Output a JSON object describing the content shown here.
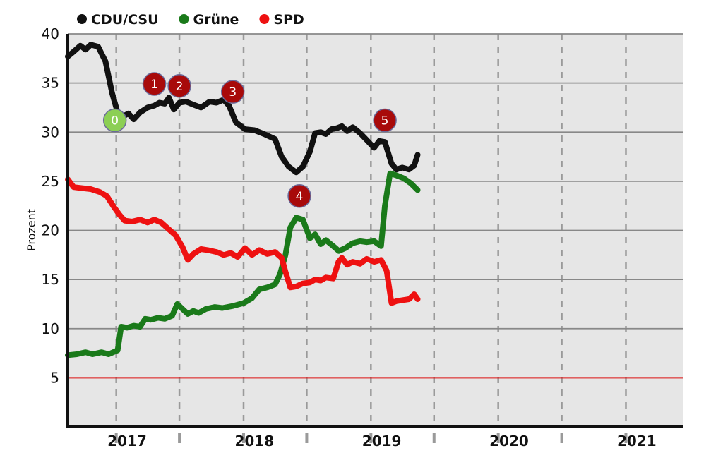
{
  "chart_data": {
    "type": "line",
    "ylabel": "Prozent",
    "ylim": [
      0,
      40
    ],
    "xlim": [
      "2016-08-15",
      "2021-06-15"
    ],
    "y_ticks": [
      5,
      10,
      15,
      20,
      25,
      30,
      35,
      40
    ],
    "x_tick_labels": [
      {
        "label": "2017",
        "date": "2017-02-01"
      },
      {
        "label": "2018",
        "date": "2018-02-01"
      },
      {
        "label": "2019",
        "date": "2019-02-01"
      },
      {
        "label": "2020",
        "date": "2020-02-01"
      },
      {
        "label": "2021",
        "date": "2021-02-01"
      }
    ],
    "grid": true,
    "legend_position": "top-left",
    "threshold": {
      "value": 5,
      "color": "#dd1111"
    },
    "series": [
      {
        "name": "CDU/CSU",
        "color": "#111111",
        "points": [
          [
            "2016-08-15",
            37.7
          ],
          [
            "2016-09-01",
            38.2
          ],
          [
            "2016-09-20",
            38.8
          ],
          [
            "2016-10-05",
            38.4
          ],
          [
            "2016-10-20",
            38.9
          ],
          [
            "2016-11-10",
            38.7
          ],
          [
            "2016-12-01",
            37.2
          ],
          [
            "2016-12-20",
            34.0
          ],
          [
            "2017-01-05",
            32.0
          ],
          [
            "2017-01-20",
            31.6
          ],
          [
            "2017-02-05",
            31.9
          ],
          [
            "2017-02-20",
            31.3
          ],
          [
            "2017-03-10",
            32.0
          ],
          [
            "2017-04-01",
            32.5
          ],
          [
            "2017-04-20",
            32.7
          ],
          [
            "2017-05-05",
            33.0
          ],
          [
            "2017-05-20",
            32.9
          ],
          [
            "2017-06-01",
            33.5
          ],
          [
            "2017-06-15",
            32.3
          ],
          [
            "2017-07-01",
            33.0
          ],
          [
            "2017-07-20",
            33.1
          ],
          [
            "2017-08-10",
            32.8
          ],
          [
            "2017-09-01",
            32.5
          ],
          [
            "2017-09-25",
            33.1
          ],
          [
            "2017-10-15",
            33.0
          ],
          [
            "2017-11-05",
            33.3
          ],
          [
            "2017-11-20",
            32.7
          ],
          [
            "2017-12-10",
            31.0
          ],
          [
            "2018-01-05",
            30.3
          ],
          [
            "2018-02-01",
            30.2
          ],
          [
            "2018-03-01",
            29.8
          ],
          [
            "2018-04-01",
            29.3
          ],
          [
            "2018-04-20",
            27.5
          ],
          [
            "2018-05-10",
            26.5
          ],
          [
            "2018-06-01",
            25.9
          ],
          [
            "2018-06-20",
            26.5
          ],
          [
            "2018-07-10",
            28.0
          ],
          [
            "2018-07-25",
            29.9
          ],
          [
            "2018-08-10",
            30.0
          ],
          [
            "2018-08-25",
            29.8
          ],
          [
            "2018-09-10",
            30.3
          ],
          [
            "2018-09-25",
            30.4
          ],
          [
            "2018-10-10",
            30.6
          ],
          [
            "2018-10-25",
            30.1
          ],
          [
            "2018-11-10",
            30.5
          ],
          [
            "2018-12-01",
            29.9
          ],
          [
            "2018-12-20",
            29.2
          ],
          [
            "2019-01-10",
            28.4
          ],
          [
            "2019-01-25",
            29.1
          ],
          [
            "2019-02-10",
            29.0
          ],
          [
            "2019-03-01",
            26.8
          ],
          [
            "2019-03-15",
            26.2
          ],
          [
            "2019-04-01",
            26.4
          ],
          [
            "2019-04-20",
            26.2
          ],
          [
            "2019-05-05",
            26.6
          ],
          [
            "2019-05-15",
            27.7
          ]
        ]
      },
      {
        "name": "Grüne",
        "color": "#1a7a1a",
        "points": [
          [
            "2016-08-15",
            7.3
          ],
          [
            "2016-09-10",
            7.4
          ],
          [
            "2016-10-05",
            7.6
          ],
          [
            "2016-10-25",
            7.4
          ],
          [
            "2016-11-20",
            7.6
          ],
          [
            "2016-12-10",
            7.4
          ],
          [
            "2017-01-05",
            7.8
          ],
          [
            "2017-01-15",
            10.2
          ],
          [
            "2017-02-01",
            10.1
          ],
          [
            "2017-02-20",
            10.3
          ],
          [
            "2017-03-10",
            10.2
          ],
          [
            "2017-03-25",
            11.0
          ],
          [
            "2017-04-10",
            10.9
          ],
          [
            "2017-05-01",
            11.1
          ],
          [
            "2017-05-20",
            11.0
          ],
          [
            "2017-06-10",
            11.3
          ],
          [
            "2017-06-25",
            12.5
          ],
          [
            "2017-07-10",
            12.0
          ],
          [
            "2017-07-25",
            11.5
          ],
          [
            "2017-08-10",
            11.8
          ],
          [
            "2017-08-25",
            11.6
          ],
          [
            "2017-09-15",
            12.0
          ],
          [
            "2017-10-10",
            12.2
          ],
          [
            "2017-11-01",
            12.1
          ],
          [
            "2017-12-01",
            12.3
          ],
          [
            "2018-01-01",
            12.6
          ],
          [
            "2018-01-25",
            13.1
          ],
          [
            "2018-02-15",
            14.0
          ],
          [
            "2018-03-10",
            14.2
          ],
          [
            "2018-04-01",
            14.5
          ],
          [
            "2018-04-15",
            15.5
          ],
          [
            "2018-05-01",
            17.5
          ],
          [
            "2018-05-15",
            20.3
          ],
          [
            "2018-06-01",
            21.3
          ],
          [
            "2018-06-20",
            21.1
          ],
          [
            "2018-07-10",
            19.2
          ],
          [
            "2018-07-25",
            19.6
          ],
          [
            "2018-08-10",
            18.6
          ],
          [
            "2018-08-25",
            19.0
          ],
          [
            "2018-09-15",
            18.4
          ],
          [
            "2018-10-01",
            17.9
          ],
          [
            "2018-10-20",
            18.2
          ],
          [
            "2018-11-10",
            18.7
          ],
          [
            "2018-12-01",
            18.9
          ],
          [
            "2018-12-20",
            18.8
          ],
          [
            "2019-01-10",
            18.9
          ],
          [
            "2019-01-30",
            18.4
          ],
          [
            "2019-02-10",
            22.5
          ],
          [
            "2019-02-25",
            25.8
          ],
          [
            "2019-03-15",
            25.6
          ],
          [
            "2019-04-05",
            25.3
          ],
          [
            "2019-04-25",
            24.8
          ],
          [
            "2019-05-15",
            24.1
          ]
        ]
      },
      {
        "name": "SPD",
        "color": "#ee1111",
        "points": [
          [
            "2016-08-15",
            25.2
          ],
          [
            "2016-09-01",
            24.4
          ],
          [
            "2016-09-25",
            24.3
          ],
          [
            "2016-10-20",
            24.2
          ],
          [
            "2016-11-15",
            23.9
          ],
          [
            "2016-12-05",
            23.5
          ],
          [
            "2016-12-25",
            22.4
          ],
          [
            "2017-01-10",
            21.6
          ],
          [
            "2017-01-25",
            21.0
          ],
          [
            "2017-02-15",
            20.9
          ],
          [
            "2017-03-10",
            21.1
          ],
          [
            "2017-04-01",
            20.8
          ],
          [
            "2017-04-20",
            21.1
          ],
          [
            "2017-05-10",
            20.8
          ],
          [
            "2017-06-01",
            20.1
          ],
          [
            "2017-06-20",
            19.5
          ],
          [
            "2017-07-10",
            18.3
          ],
          [
            "2017-07-25",
            17.0
          ],
          [
            "2017-08-10",
            17.6
          ],
          [
            "2017-09-01",
            18.1
          ],
          [
            "2017-09-20",
            18.0
          ],
          [
            "2017-10-15",
            17.8
          ],
          [
            "2017-11-05",
            17.5
          ],
          [
            "2017-11-25",
            17.7
          ],
          [
            "2017-12-15",
            17.3
          ],
          [
            "2018-01-05",
            18.2
          ],
          [
            "2018-01-25",
            17.5
          ],
          [
            "2018-02-15",
            18.0
          ],
          [
            "2018-03-10",
            17.6
          ],
          [
            "2018-04-01",
            17.8
          ],
          [
            "2018-04-20",
            17.2
          ],
          [
            "2018-05-01",
            15.8
          ],
          [
            "2018-05-15",
            14.2
          ],
          [
            "2018-06-01",
            14.3
          ],
          [
            "2018-06-20",
            14.6
          ],
          [
            "2018-07-10",
            14.7
          ],
          [
            "2018-07-25",
            15.0
          ],
          [
            "2018-08-10",
            14.9
          ],
          [
            "2018-08-25",
            15.2
          ],
          [
            "2018-09-15",
            15.1
          ],
          [
            "2018-09-30",
            16.8
          ],
          [
            "2018-10-10",
            17.2
          ],
          [
            "2018-10-25",
            16.5
          ],
          [
            "2018-11-10",
            16.8
          ],
          [
            "2018-12-01",
            16.6
          ],
          [
            "2018-12-20",
            17.1
          ],
          [
            "2019-01-10",
            16.8
          ],
          [
            "2019-01-30",
            17.0
          ],
          [
            "2019-02-15",
            15.9
          ],
          [
            "2019-03-01",
            12.6
          ],
          [
            "2019-03-15",
            12.8
          ],
          [
            "2019-04-01",
            12.9
          ],
          [
            "2019-04-20",
            13.0
          ],
          [
            "2019-05-05",
            13.5
          ],
          [
            "2019-05-15",
            13.0
          ]
        ]
      }
    ],
    "markers": [
      {
        "label": "0",
        "date": "2016-12-28",
        "value": 31.2,
        "color": "#8ccf55"
      },
      {
        "label": "1",
        "date": "2017-04-20",
        "value": 34.9,
        "color": "#a80a0a"
      },
      {
        "label": "2",
        "date": "2017-07-01",
        "value": 34.7,
        "color": "#a80a0a"
      },
      {
        "label": "3",
        "date": "2017-12-01",
        "value": 34.1,
        "color": "#a80a0a"
      },
      {
        "label": "4",
        "date": "2018-06-10",
        "value": 23.5,
        "color": "#a80a0a"
      },
      {
        "label": "5",
        "date": "2019-02-10",
        "value": 31.2,
        "color": "#a80a0a"
      }
    ]
  }
}
